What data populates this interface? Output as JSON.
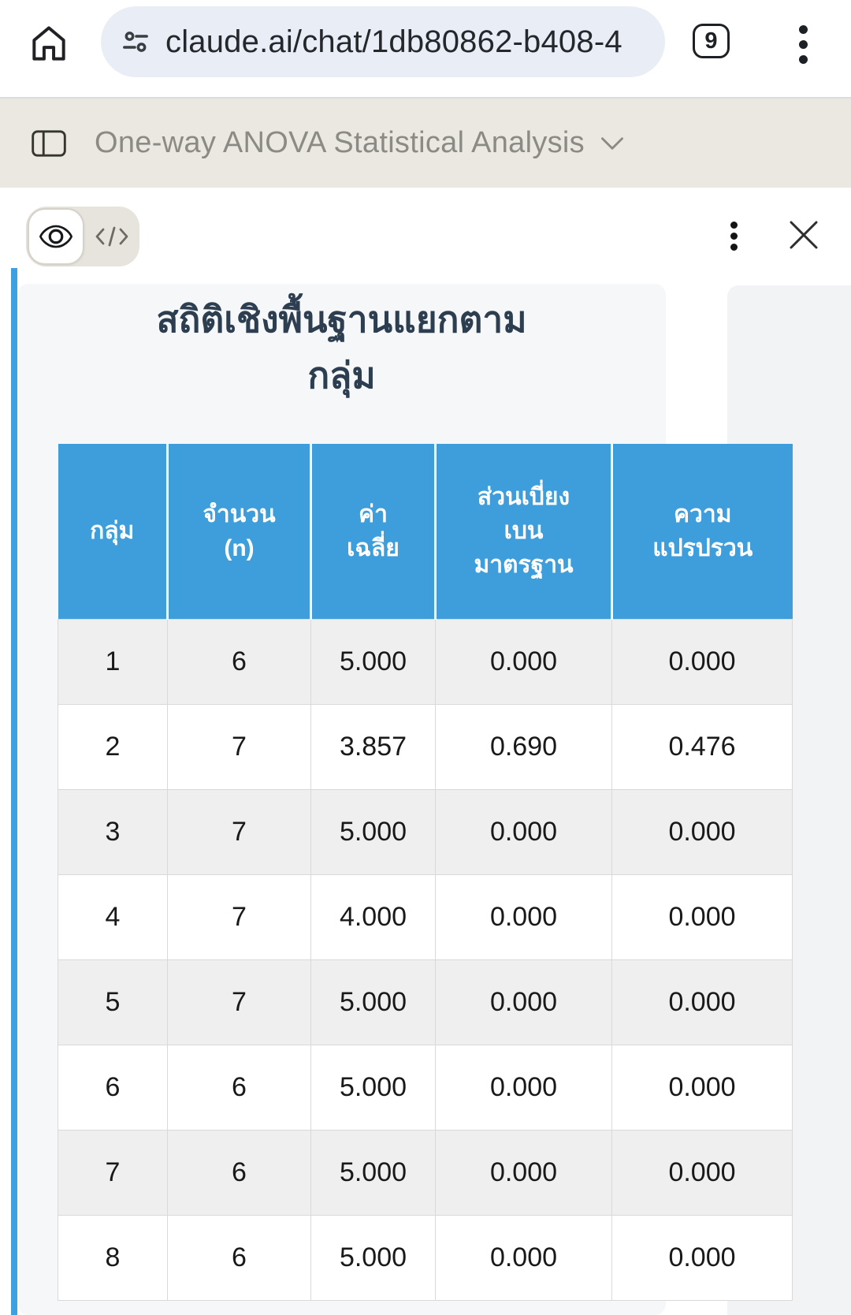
{
  "browser": {
    "url": "claude.ai/chat/1db80862-b408-4",
    "tab_count": "9"
  },
  "chat_header": {
    "title": "One-way ANOVA Statistical Analysis"
  },
  "artifact": {
    "section_title": "สถิติเชิงพื้นฐานแยกตาม\nกลุ่ม"
  },
  "table": {
    "headers": [
      "กลุ่ม",
      "จำนวน\n(n)",
      "ค่า\nเฉลี่ย",
      "ส่วนเบี่ยง\nเบน\nมาตรฐาน",
      "ความ\nแปรปรวน"
    ],
    "rows": [
      [
        "1",
        "6",
        "5.000",
        "0.000",
        "0.000"
      ],
      [
        "2",
        "7",
        "3.857",
        "0.690",
        "0.476"
      ],
      [
        "3",
        "7",
        "5.000",
        "0.000",
        "0.000"
      ],
      [
        "4",
        "7",
        "4.000",
        "0.000",
        "0.000"
      ],
      [
        "5",
        "7",
        "5.000",
        "0.000",
        "0.000"
      ],
      [
        "6",
        "6",
        "5.000",
        "0.000",
        "0.000"
      ],
      [
        "7",
        "6",
        "5.000",
        "0.000",
        "0.000"
      ],
      [
        "8",
        "6",
        "5.000",
        "0.000",
        "0.000"
      ]
    ]
  },
  "colors": {
    "table_header_blue": "#3d9edb",
    "accent_bar_blue": "#3ea0e0",
    "title_navy": "#2c3e50",
    "row_stripe_gray": "#efefef",
    "chrome_bar_beige": "#eae8e0",
    "url_pill_gray": "#e9edf6"
  }
}
